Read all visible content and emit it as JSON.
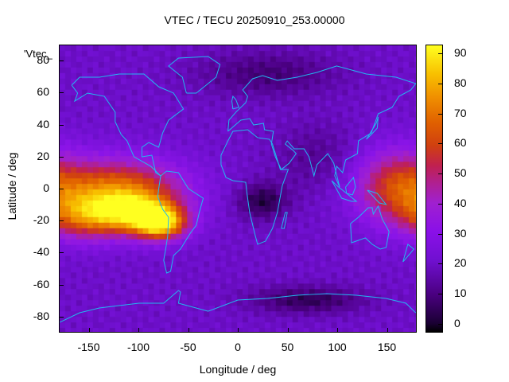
{
  "title": "VTEC / TECU 20250910_253.00000",
  "key_label": "'Vtec_",
  "xlabel": "Longitude / deg",
  "ylabel": "Latitude / deg",
  "x_ticks": [
    "-150",
    "-100",
    "-50",
    "0",
    "50",
    "100",
    "150"
  ],
  "y_ticks": [
    "80",
    "60",
    "40",
    "20",
    "0",
    "-20",
    "-40",
    "-60",
    "-80"
  ],
  "colorbar_ticks": [
    "90",
    "80",
    "70",
    "60",
    "50",
    "40",
    "30",
    "20",
    "10",
    "0"
  ],
  "chart_data": {
    "type": "heatmap",
    "title": "VTEC / TECU 20250910_253.00000",
    "xlabel": "Longitude / deg",
    "ylabel": "Latitude / deg",
    "xlim": [
      -180,
      180
    ],
    "ylim": [
      -90,
      90
    ],
    "colorbar_range": [
      -3,
      93
    ],
    "colormap": "black-purple-red-orange-yellow",
    "features": [
      {
        "region": "equatorial anomaly Pacific/Americas",
        "lon_range": [
          -180,
          -40
        ],
        "lat_range": [
          -30,
          20
        ],
        "approx_value": 70
      },
      {
        "region": "peak South America",
        "lon": -75,
        "lat": -20,
        "approx_value": 90
      },
      {
        "region": "western Pacific crest",
        "lon_range": [
          110,
          180
        ],
        "lat_range": [
          -20,
          20
        ],
        "approx_value": 55
      },
      {
        "region": "Africa minimum",
        "lon_range": [
          0,
          50
        ],
        "lat_range": [
          -15,
          0
        ],
        "approx_value": 3
      },
      {
        "region": "Antarctic minimum",
        "lon_range": [
          30,
          120
        ],
        "lat_range": [
          -75,
          -65
        ],
        "approx_value": 3
      },
      {
        "region": "Arctic minimum",
        "lon_range": [
          -40,
          60
        ],
        "lat_range": [
          60,
          80
        ],
        "approx_value": 8
      }
    ],
    "grid": false
  }
}
